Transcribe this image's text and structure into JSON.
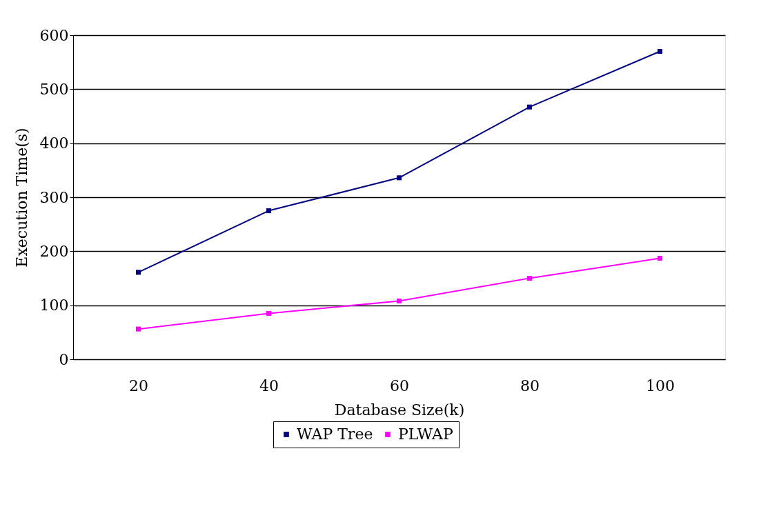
{
  "chart_data": {
    "type": "line",
    "xlabel": "Database Size(k)",
    "ylabel": "Execution Time(s)",
    "categories": [
      "20",
      "40",
      "60",
      "80",
      "100"
    ],
    "series": [
      {
        "name": "WAP Tree",
        "color": "#000080",
        "values": [
          161,
          275,
          336,
          467,
          570
        ]
      },
      {
        "name": "PLWAP",
        "color": "#ff00ff",
        "values": [
          56,
          85,
          108,
          150,
          187
        ]
      }
    ],
    "ylim": [
      0,
      600
    ],
    "yticks": [
      0,
      100,
      200,
      300,
      400,
      500,
      600
    ],
    "grid": "y",
    "legend": "bottom",
    "marker": "square",
    "line_style": "solid"
  }
}
